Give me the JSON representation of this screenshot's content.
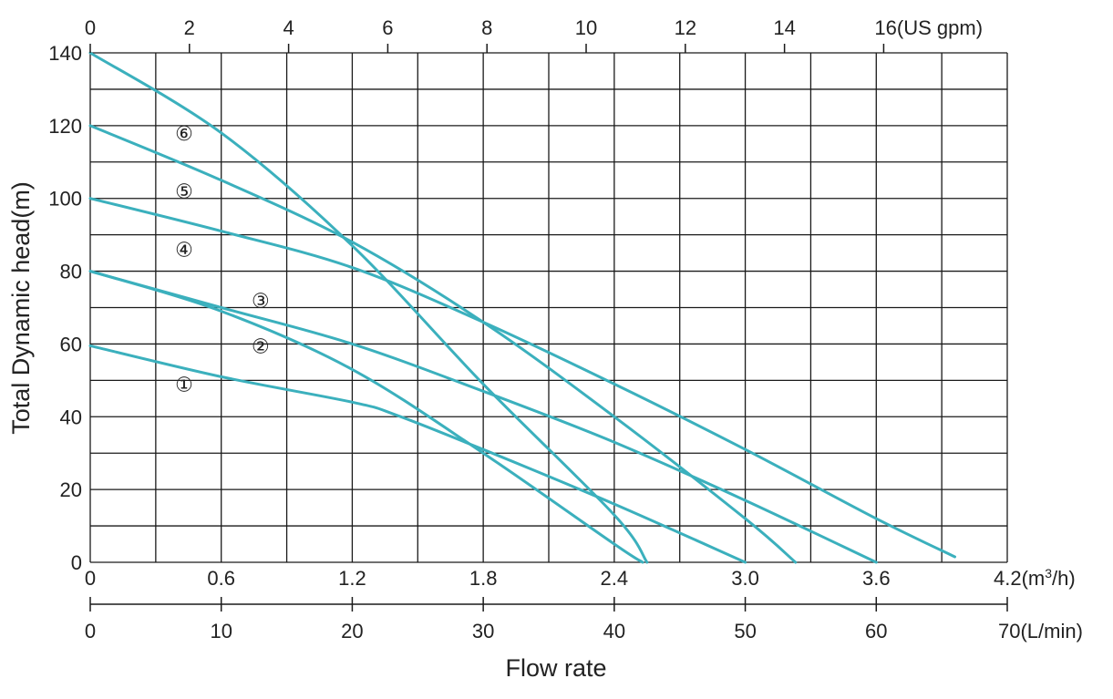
{
  "chart_data": {
    "type": "line",
    "ylabel": "Total Dynamic head(m)",
    "xlabel": "Flow rate",
    "ylim": [
      0,
      140
    ],
    "xlim_m3h": [
      0,
      4.2
    ],
    "grid": true,
    "y_ticks": [
      "0",
      "20",
      "40",
      "60",
      "80",
      "100",
      "120",
      "140"
    ],
    "x_axis_m3h": {
      "ticks": [
        {
          "value": 0,
          "label": "0"
        },
        {
          "value": 0.6,
          "label": "0.6"
        },
        {
          "value": 1.2,
          "label": "1.2"
        },
        {
          "value": 1.8,
          "label": "1.8"
        },
        {
          "value": 2.4,
          "label": "2.4"
        },
        {
          "value": 3.0,
          "label": "3.0"
        },
        {
          "value": 3.6,
          "label": "3.6"
        }
      ],
      "end_label": "4.2(m³/h)"
    },
    "x_axis_lmin": {
      "ticks": [
        {
          "value": 0,
          "label": "0"
        },
        {
          "value": 10,
          "label": "10"
        },
        {
          "value": 20,
          "label": "20"
        },
        {
          "value": 30,
          "label": "30"
        },
        {
          "value": 40,
          "label": "40"
        },
        {
          "value": 50,
          "label": "50"
        },
        {
          "value": 60,
          "label": "60"
        }
      ],
      "end_label": "70(L/min)"
    },
    "x_axis_usgpm": {
      "ticks": [
        {
          "value": 0,
          "label": "0"
        },
        {
          "value": 2,
          "label": "2"
        },
        {
          "value": 4,
          "label": "4"
        },
        {
          "value": 6,
          "label": "6"
        },
        {
          "value": 8,
          "label": "8"
        },
        {
          "value": 10,
          "label": "10"
        },
        {
          "value": 12,
          "label": "12"
        },
        {
          "value": 14,
          "label": "14"
        }
      ],
      "end_label": "16(US gpm)"
    },
    "line_color": "#3bb0bd",
    "series": [
      {
        "name": "①",
        "label_at": [
          0.43,
          49
        ],
        "x": [
          0,
          0.6,
          1.2,
          1.4,
          1.8,
          2.4,
          3.0
        ],
        "y": [
          59.5,
          51,
          44,
          40.5,
          31,
          16,
          0
        ]
      },
      {
        "name": "②",
        "label_at": [
          0.78,
          59.5
        ],
        "x": [
          0,
          0.6,
          1.2,
          1.8,
          2.4,
          2.53
        ],
        "y": [
          80,
          69,
          53,
          30,
          5,
          0
        ]
      },
      {
        "name": "③",
        "label_at": [
          0.78,
          72
        ],
        "x": [
          0,
          0.6,
          1.2,
          1.8,
          2.4,
          3.0,
          3.6
        ],
        "y": [
          80,
          70,
          60,
          47,
          33,
          17,
          0
        ]
      },
      {
        "name": "④",
        "label_at": [
          0.43,
          86
        ],
        "x": [
          0,
          0.6,
          1.2,
          1.8,
          2.4,
          3.0,
          3.6,
          3.96
        ],
        "y": [
          100,
          91,
          81,
          66,
          49,
          31,
          12,
          1.5
        ]
      },
      {
        "name": "⑤",
        "label_at": [
          0.43,
          102
        ],
        "x": [
          0,
          0.6,
          1.2,
          1.8,
          2.4,
          3.0,
          3.23
        ],
        "y": [
          120,
          105,
          88,
          66,
          40,
          12,
          0
        ]
      },
      {
        "name": "⑥",
        "label_at": [
          0.43,
          118
        ],
        "x": [
          0,
          0.6,
          1.2,
          1.8,
          2.4,
          2.55
        ],
        "y": [
          140,
          118,
          87,
          49,
          13,
          0
        ]
      }
    ]
  }
}
